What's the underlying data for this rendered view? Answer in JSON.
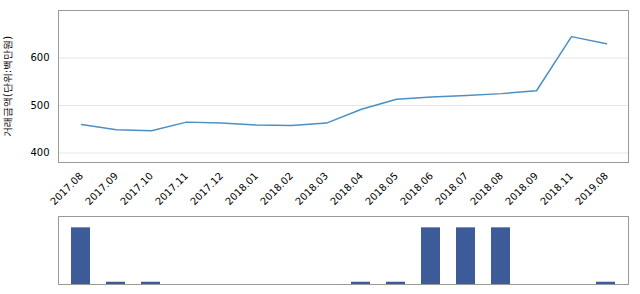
{
  "chart_data": [
    {
      "type": "line",
      "categories": [
        "2017.08",
        "2017.09",
        "2017.10",
        "2017.11",
        "2017.12",
        "2018.01",
        "2018.02",
        "2018.03",
        "2018.04",
        "2018.05",
        "2018.06",
        "2018.07",
        "2018.08",
        "2018.09",
        "2018.11",
        "2019.08"
      ],
      "values": [
        460,
        449,
        447,
        465,
        463,
        459,
        458,
        463,
        492,
        513,
        518,
        521,
        525,
        531,
        645,
        630
      ],
      "color": "#4a90c4",
      "ylabel": "거래금액(단위:백만원)",
      "ylim": [
        380,
        700
      ],
      "yticks": [
        400,
        500,
        600
      ],
      "grid": true
    },
    {
      "type": "bar",
      "categories": [
        "2017.08",
        "2017.09",
        "2017.10",
        "2017.11",
        "2017.12",
        "2018.01",
        "2018.02",
        "2018.03",
        "2018.04",
        "2018.05",
        "2018.06",
        "2018.07",
        "2018.08",
        "2018.09",
        "2018.11",
        "2019.08"
      ],
      "values": [
        2.5,
        0.1,
        0.1,
        0,
        0,
        0,
        0,
        0,
        0.1,
        0.1,
        2.5,
        2.5,
        2.5,
        0,
        0,
        0.1
      ],
      "color": "#3d5a99",
      "ylim": [
        0,
        3
      ],
      "tick_labels": false
    }
  ]
}
